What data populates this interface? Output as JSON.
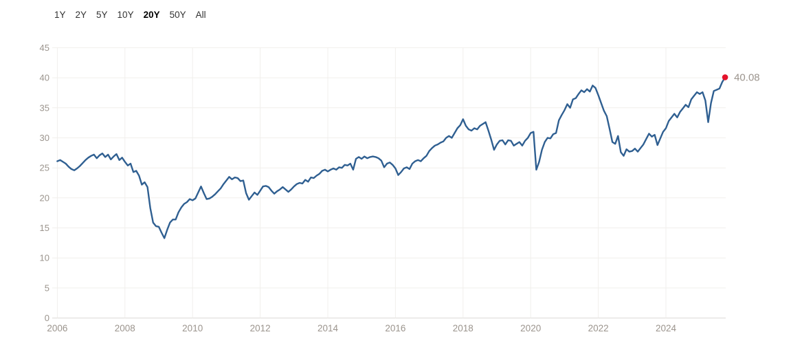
{
  "range_selector": {
    "options": [
      {
        "label": "1Y",
        "active": false
      },
      {
        "label": "2Y",
        "active": false
      },
      {
        "label": "5Y",
        "active": false
      },
      {
        "label": "10Y",
        "active": false
      },
      {
        "label": "20Y",
        "active": true
      },
      {
        "label": "50Y",
        "active": false
      },
      {
        "label": "All",
        "active": false
      }
    ]
  },
  "chart_data": {
    "type": "line",
    "title": "",
    "xlabel": "",
    "ylabel": "",
    "grid": true,
    "legend_position": "none",
    "x_start_year": 2006,
    "months_per_point": 1,
    "x_tick_years": [
      2006,
      2008,
      2010,
      2012,
      2014,
      2016,
      2018,
      2020,
      2022,
      2024
    ],
    "x_tick_labels": [
      "2006",
      "2008",
      "2010",
      "2012",
      "2014",
      "2016",
      "2018",
      "2020",
      "2022",
      "2024"
    ],
    "y_ticks": [
      0,
      5,
      10,
      15,
      20,
      25,
      30,
      35,
      40,
      45
    ],
    "ylim": [
      0,
      45
    ],
    "current_value": 40.08,
    "current_value_label": "40.08",
    "colors": {
      "line": "#2f5f91",
      "dot": "#e4122b",
      "grid": "#f1efec",
      "axis_line": "#dcd9d4",
      "tick_text": "#9b948d",
      "value_label_text": "#9b948d"
    },
    "values": [
      26.1,
      26.3,
      26.0,
      25.7,
      25.2,
      24.8,
      24.6,
      24.9,
      25.3,
      25.8,
      26.3,
      26.7,
      27.0,
      27.2,
      26.6,
      27.1,
      27.4,
      26.8,
      27.2,
      26.4,
      26.9,
      27.3,
      26.3,
      26.7,
      26.0,
      25.4,
      25.7,
      24.3,
      24.5,
      23.7,
      22.2,
      22.6,
      21.8,
      18.3,
      15.9,
      15.3,
      15.2,
      14.2,
      13.3,
      14.7,
      15.9,
      16.4,
      16.4,
      17.6,
      18.4,
      19.0,
      19.3,
      19.8,
      19.6,
      19.9,
      20.9,
      21.9,
      20.8,
      19.8,
      19.9,
      20.2,
      20.6,
      21.1,
      21.6,
      22.3,
      22.9,
      23.5,
      23.1,
      23.4,
      23.3,
      22.8,
      22.9,
      20.8,
      19.7,
      20.3,
      20.9,
      20.5,
      21.2,
      21.9,
      22.0,
      21.8,
      21.2,
      20.7,
      21.1,
      21.4,
      21.8,
      21.4,
      21.0,
      21.4,
      21.9,
      22.3,
      22.5,
      22.4,
      23.0,
      22.7,
      23.4,
      23.3,
      23.7,
      24.0,
      24.5,
      24.7,
      24.4,
      24.7,
      24.9,
      24.7,
      25.1,
      25.0,
      25.5,
      25.4,
      25.7,
      24.7,
      26.5,
      26.8,
      26.5,
      26.9,
      26.6,
      26.8,
      26.9,
      26.8,
      26.6,
      26.2,
      25.1,
      25.7,
      25.9,
      25.5,
      24.9,
      23.8,
      24.3,
      24.9,
      25.1,
      24.8,
      25.7,
      26.1,
      26.3,
      26.1,
      26.6,
      27.0,
      27.8,
      28.3,
      28.7,
      28.9,
      29.2,
      29.4,
      30.0,
      30.3,
      30.0,
      30.8,
      31.6,
      32.1,
      33.1,
      32.0,
      31.4,
      31.2,
      31.6,
      31.4,
      32.0,
      32.3,
      32.6,
      31.2,
      29.7,
      28.0,
      28.9,
      29.5,
      29.6,
      28.9,
      29.6,
      29.5,
      28.7,
      29.0,
      29.3,
      28.7,
      29.5,
      30.0,
      30.8,
      31.0,
      24.7,
      26.0,
      28.0,
      29.3,
      30.0,
      29.9,
      30.6,
      30.8,
      32.9,
      33.8,
      34.6,
      35.6,
      35.0,
      36.4,
      36.6,
      37.3,
      37.9,
      37.6,
      38.1,
      37.7,
      38.7,
      38.3,
      37.1,
      35.8,
      34.5,
      33.6,
      31.5,
      29.3,
      29.0,
      30.3,
      27.6,
      27.0,
      28.1,
      27.7,
      27.8,
      28.2,
      27.7,
      28.3,
      28.9,
      29.8,
      30.7,
      30.2,
      30.5,
      28.8,
      29.9,
      31.0,
      31.6,
      32.8,
      33.4,
      34.0,
      33.4,
      34.3,
      34.9,
      35.5,
      35.1,
      36.4,
      37.0,
      37.6,
      37.3,
      37.6,
      36.2,
      32.6,
      35.8,
      37.8,
      38.0,
      38.2,
      39.3,
      40.08
    ]
  }
}
